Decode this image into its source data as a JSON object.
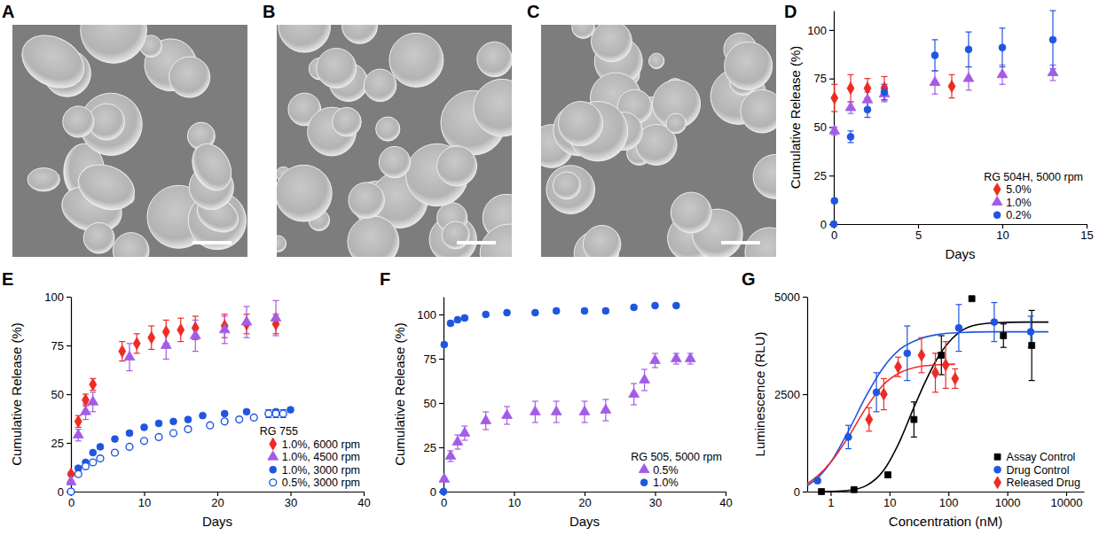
{
  "chart_data": [
    {
      "type": "image",
      "panel_label": "A"
    },
    {
      "type": "image",
      "panel_label": "B"
    },
    {
      "type": "image",
      "panel_label": "C"
    },
    {
      "type": "scatter",
      "panel_label": "D",
      "x_label": "Days",
      "y_label": "Cumulative Release (%)",
      "xlim": [
        0,
        15
      ],
      "xticks": [
        0,
        5,
        10,
        15
      ],
      "ylim": [
        0,
        110
      ],
      "yticks": [
        0,
        25,
        50,
        75,
        100
      ],
      "legend": "lower right",
      "legend_title": "RG 504H, 5000 rpm",
      "series": [
        {
          "name": "5.0%",
          "color": "#ee2a24",
          "marker": "diamond",
          "x": [
            0.04,
            1,
            2,
            3,
            7
          ],
          "values": [
            65,
            70,
            70,
            70,
            71
          ],
          "errors": [
            7,
            7,
            5,
            6,
            6
          ]
        },
        {
          "name": "1.0%",
          "color": "#a35ce6",
          "marker": "triangle",
          "x": [
            0.04,
            1,
            2,
            3,
            6,
            8,
            10,
            13
          ],
          "values": [
            48,
            60,
            64,
            67,
            73,
            75,
            77,
            78
          ],
          "errors": [
            2,
            3,
            4,
            4,
            6,
            6,
            5,
            4
          ]
        },
        {
          "name": "0.2%",
          "color": "#1f56e0",
          "marker": "circle",
          "x": [
            0,
            0.04,
            1,
            2,
            3,
            6,
            8,
            10,
            13
          ],
          "values": [
            0,
            12,
            45,
            59,
            68,
            87,
            90,
            91,
            95
          ],
          "errors": [
            0.5,
            1,
            3,
            4,
            4,
            8,
            9,
            10,
            15
          ]
        }
      ]
    },
    {
      "type": "scatter",
      "panel_label": "E",
      "x_label": "Days",
      "y_label": "Cumulative Release (%)",
      "xlim": [
        0,
        40
      ],
      "xticks": [
        0,
        10,
        20,
        30,
        40
      ],
      "ylim": [
        0,
        100
      ],
      "yticks": [
        0,
        25,
        50,
        75,
        100
      ],
      "legend": "lower right",
      "legend_title": "RG 755",
      "series": [
        {
          "name": "1.0%, 6000 rpm",
          "color": "#ee2a24",
          "marker": "diamond",
          "x": [
            0,
            1,
            2,
            3,
            7,
            9,
            11,
            13,
            15,
            17,
            21,
            24,
            28
          ],
          "values": [
            9,
            36,
            47,
            55,
            72,
            76,
            79,
            82,
            83,
            84,
            85,
            86,
            86
          ],
          "errors": [
            1,
            3,
            3,
            3,
            5,
            5,
            6,
            6,
            6,
            6,
            6,
            5,
            5
          ]
        },
        {
          "name": "1.0%, 4500 rpm",
          "color": "#a35ce6",
          "marker": "triangle",
          "x": [
            0,
            1,
            2,
            3,
            8,
            13,
            17,
            21,
            24,
            28
          ],
          "values": [
            5,
            29,
            41,
            46,
            69,
            75,
            80,
            83,
            87,
            89
          ],
          "errors": [
            1,
            3,
            4,
            5,
            7,
            7,
            8,
            7,
            8,
            9
          ]
        },
        {
          "name": "1.0%, 3000 rpm",
          "color": "#1f56e0",
          "marker": "circle",
          "x": [
            0,
            1,
            2,
            3,
            4,
            6,
            8,
            10,
            12,
            14,
            16,
            18,
            21,
            24,
            28,
            30
          ],
          "values": [
            0,
            12,
            15,
            20,
            23,
            27,
            30,
            33,
            35,
            36,
            37,
            39,
            40,
            41,
            41,
            42
          ],
          "errors": [
            1,
            1,
            1,
            1,
            1,
            1,
            1,
            1,
            1,
            1,
            1,
            1,
            1,
            1,
            1,
            1
          ]
        },
        {
          "name": "0.5%, 3000 rpm",
          "color": "#1f56e0",
          "marker": "circle-open",
          "x": [
            0,
            1,
            2,
            3,
            4,
            6,
            8,
            10,
            12,
            14,
            16,
            19,
            21,
            23,
            25,
            27,
            28,
            29
          ],
          "values": [
            0,
            9,
            13,
            15,
            17,
            20,
            23,
            26,
            28,
            30,
            32,
            34,
            36,
            37,
            38,
            40,
            40,
            40
          ],
          "errors": [
            0.5,
            1,
            1,
            1,
            1,
            1,
            1,
            1,
            1,
            1,
            1,
            1,
            1,
            1,
            1,
            2,
            2,
            2
          ]
        }
      ]
    },
    {
      "type": "scatter",
      "panel_label": "F",
      "x_label": "Days",
      "y_label": "Cumulative Release (%)",
      "xlim": [
        0,
        40
      ],
      "xticks": [
        0,
        10,
        20,
        30,
        40
      ],
      "ylim": [
        0,
        110
      ],
      "yticks": [
        0,
        25,
        50,
        75,
        100
      ],
      "legend": "lower right",
      "legend_title": "RG 505, 5000 rpm",
      "series": [
        {
          "name": "0.5%",
          "color": "#a35ce6",
          "marker": "triangle",
          "x": [
            0.1,
            1,
            2,
            3,
            6,
            9,
            13,
            16,
            20,
            23,
            27,
            28.5,
            30,
            33,
            35
          ],
          "values": [
            7,
            20,
            28,
            33,
            40,
            43,
            45,
            45,
            45,
            46,
            55,
            63,
            74,
            75,
            75
          ],
          "errors": [
            1,
            3,
            4,
            4,
            5,
            5,
            6,
            6,
            6,
            6,
            6,
            6,
            4,
            3,
            3
          ]
        },
        {
          "name": "1.0%",
          "color": "#1f56e0",
          "marker": "circle",
          "x": [
            0,
            0.1,
            1,
            2,
            3,
            6,
            9,
            13,
            16,
            20,
            23,
            27,
            30,
            33
          ],
          "values": [
            0,
            83,
            95,
            97,
            98,
            100,
            101,
            101,
            102,
            102,
            102,
            104,
            105,
            105
          ],
          "errors": [
            0.5,
            1,
            1,
            1,
            1,
            1,
            1,
            1,
            1,
            1,
            1,
            1,
            1,
            1
          ]
        }
      ]
    },
    {
      "type": "scatter",
      "panel_label": "G",
      "x_label": "Concentration (nM)",
      "y_label": "Luminescence (RLU)",
      "log": "x",
      "xlim": [
        0.4,
        20000
      ],
      "xticks": [
        1,
        10,
        100,
        1000,
        10000
      ],
      "ylim": [
        0,
        5000
      ],
      "yticks": [
        0,
        2500,
        5000
      ],
      "legend": "lower right",
      "series": [
        {
          "name": "Assay Control",
          "color": "#000000",
          "marker": "square",
          "x": [
            0.7,
            2.5,
            9.4,
            26,
            76,
            250,
            860,
            2600
          ],
          "values": [
            0,
            50,
            430,
            1850,
            3500,
            4950,
            4000,
            3750
          ],
          "errors": [
            20,
            30,
            60,
            450,
            500,
            40,
            300,
            900
          ],
          "fit": {
            "x": [
              0.7,
              1,
              2,
              4,
              8,
              15,
              25,
              40,
              70,
              120,
              250,
              600,
              2000,
              5000
            ],
            "values": [
              0,
              5,
              30,
              150,
              550,
              1300,
              2100,
              2800,
              3500,
              3950,
              4250,
              4330,
              4350,
              4350
            ]
          }
        },
        {
          "name": "Drug Control",
          "color": "#1f56e0",
          "marker": "circle",
          "x": [
            0.6,
            2,
            6,
            20,
            150,
            600,
            2500
          ],
          "values": [
            280,
            1400,
            2550,
            3550,
            4200,
            4350,
            4100
          ],
          "errors": [
            50,
            300,
            500,
            700,
            600,
            500,
            400
          ],
          "fit": {
            "x": [
              0.4,
              0.6,
              1,
              2,
              4,
              8,
              15,
              30,
              60,
              150,
              500,
              2000,
              5000
            ],
            "values": [
              150,
              350,
              750,
              1550,
              2450,
              3200,
              3650,
              3900,
              4020,
              4080,
              4100,
              4100,
              4100
            ]
          }
        },
        {
          "name": "Released Drug",
          "color": "#ee2a24",
          "marker": "diamond",
          "x": [
            4.5,
            8,
            14,
            35,
            60,
            90,
            130
          ],
          "values": [
            1850,
            2500,
            3200,
            3500,
            3050,
            3250,
            2900
          ],
          "errors": [
            300,
            400,
            250,
            450,
            500,
            600,
            250
          ],
          "fit": {
            "x": [
              0.4,
              0.6,
              1,
              2,
              4,
              8,
              15,
              30,
              60,
              130
            ],
            "values": [
              200,
              400,
              750,
              1400,
              2150,
              2750,
              3050,
              3200,
              3250,
              3270
            ]
          }
        }
      ]
    }
  ]
}
